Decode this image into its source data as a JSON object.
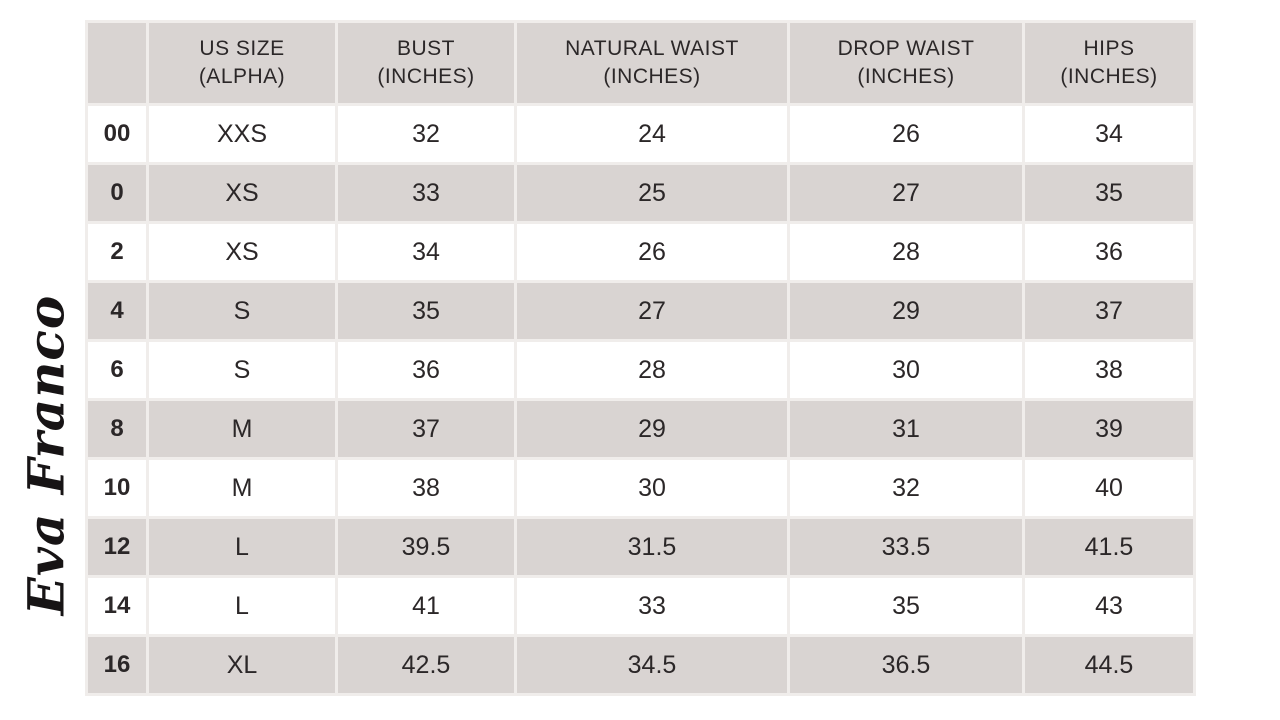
{
  "brand": {
    "logo_text": "Eva Franco"
  },
  "colors": {
    "header_bg": "#d9d4d2",
    "row_alt_bg": "#d9d4d2",
    "row_bg": "#ffffff",
    "grid_gap": "#f0edeb",
    "text": "#2b2728",
    "logo_ink": "#171415"
  },
  "table": {
    "columns": [
      {
        "line1": "",
        "line2": ""
      },
      {
        "line1": "US SIZE",
        "line2": "(ALPHA)"
      },
      {
        "line1": "BUST",
        "line2": "(INCHES)"
      },
      {
        "line1": "NATURAL WAIST",
        "line2": "(INCHES)"
      },
      {
        "line1": "DROP WAIST",
        "line2": "(INCHES)"
      },
      {
        "line1": "HIPS",
        "line2": "(INCHES)"
      }
    ],
    "rows": [
      [
        "00",
        "XXS",
        "32",
        "24",
        "26",
        "34"
      ],
      [
        "0",
        "XS",
        "33",
        "25",
        "27",
        "35"
      ],
      [
        "2",
        "XS",
        "34",
        "26",
        "28",
        "36"
      ],
      [
        "4",
        "S",
        "35",
        "27",
        "29",
        "37"
      ],
      [
        "6",
        "S",
        "36",
        "28",
        "30",
        "38"
      ],
      [
        "8",
        "M",
        "37",
        "29",
        "31",
        "39"
      ],
      [
        "10",
        "M",
        "38",
        "30",
        "32",
        "40"
      ],
      [
        "12",
        "L",
        "39.5",
        "31.5",
        "33.5",
        "41.5"
      ],
      [
        "14",
        "L",
        "41",
        "33",
        "35",
        "43"
      ],
      [
        "16",
        "XL",
        "42.5",
        "34.5",
        "36.5",
        "44.5"
      ]
    ]
  },
  "chart_data": {
    "type": "table",
    "columns": [
      "",
      "US SIZE (ALPHA)",
      "BUST (INCHES)",
      "NATURAL WAIST (INCHES)",
      "DROP WAIST (INCHES)",
      "HIPS (INCHES)"
    ],
    "rows": [
      [
        "00",
        "XXS",
        32,
        24,
        26,
        34
      ],
      [
        "0",
        "XS",
        33,
        25,
        27,
        35
      ],
      [
        "2",
        "XS",
        34,
        26,
        28,
        36
      ],
      [
        "4",
        "S",
        35,
        27,
        29,
        37
      ],
      [
        "6",
        "S",
        36,
        28,
        30,
        38
      ],
      [
        "8",
        "M",
        37,
        29,
        31,
        39
      ],
      [
        "10",
        "M",
        38,
        30,
        32,
        40
      ],
      [
        "12",
        "L",
        39.5,
        31.5,
        33.5,
        41.5
      ],
      [
        "14",
        "L",
        41,
        33,
        35,
        43
      ],
      [
        "16",
        "XL",
        42.5,
        34.5,
        36.5,
        44.5
      ]
    ]
  }
}
